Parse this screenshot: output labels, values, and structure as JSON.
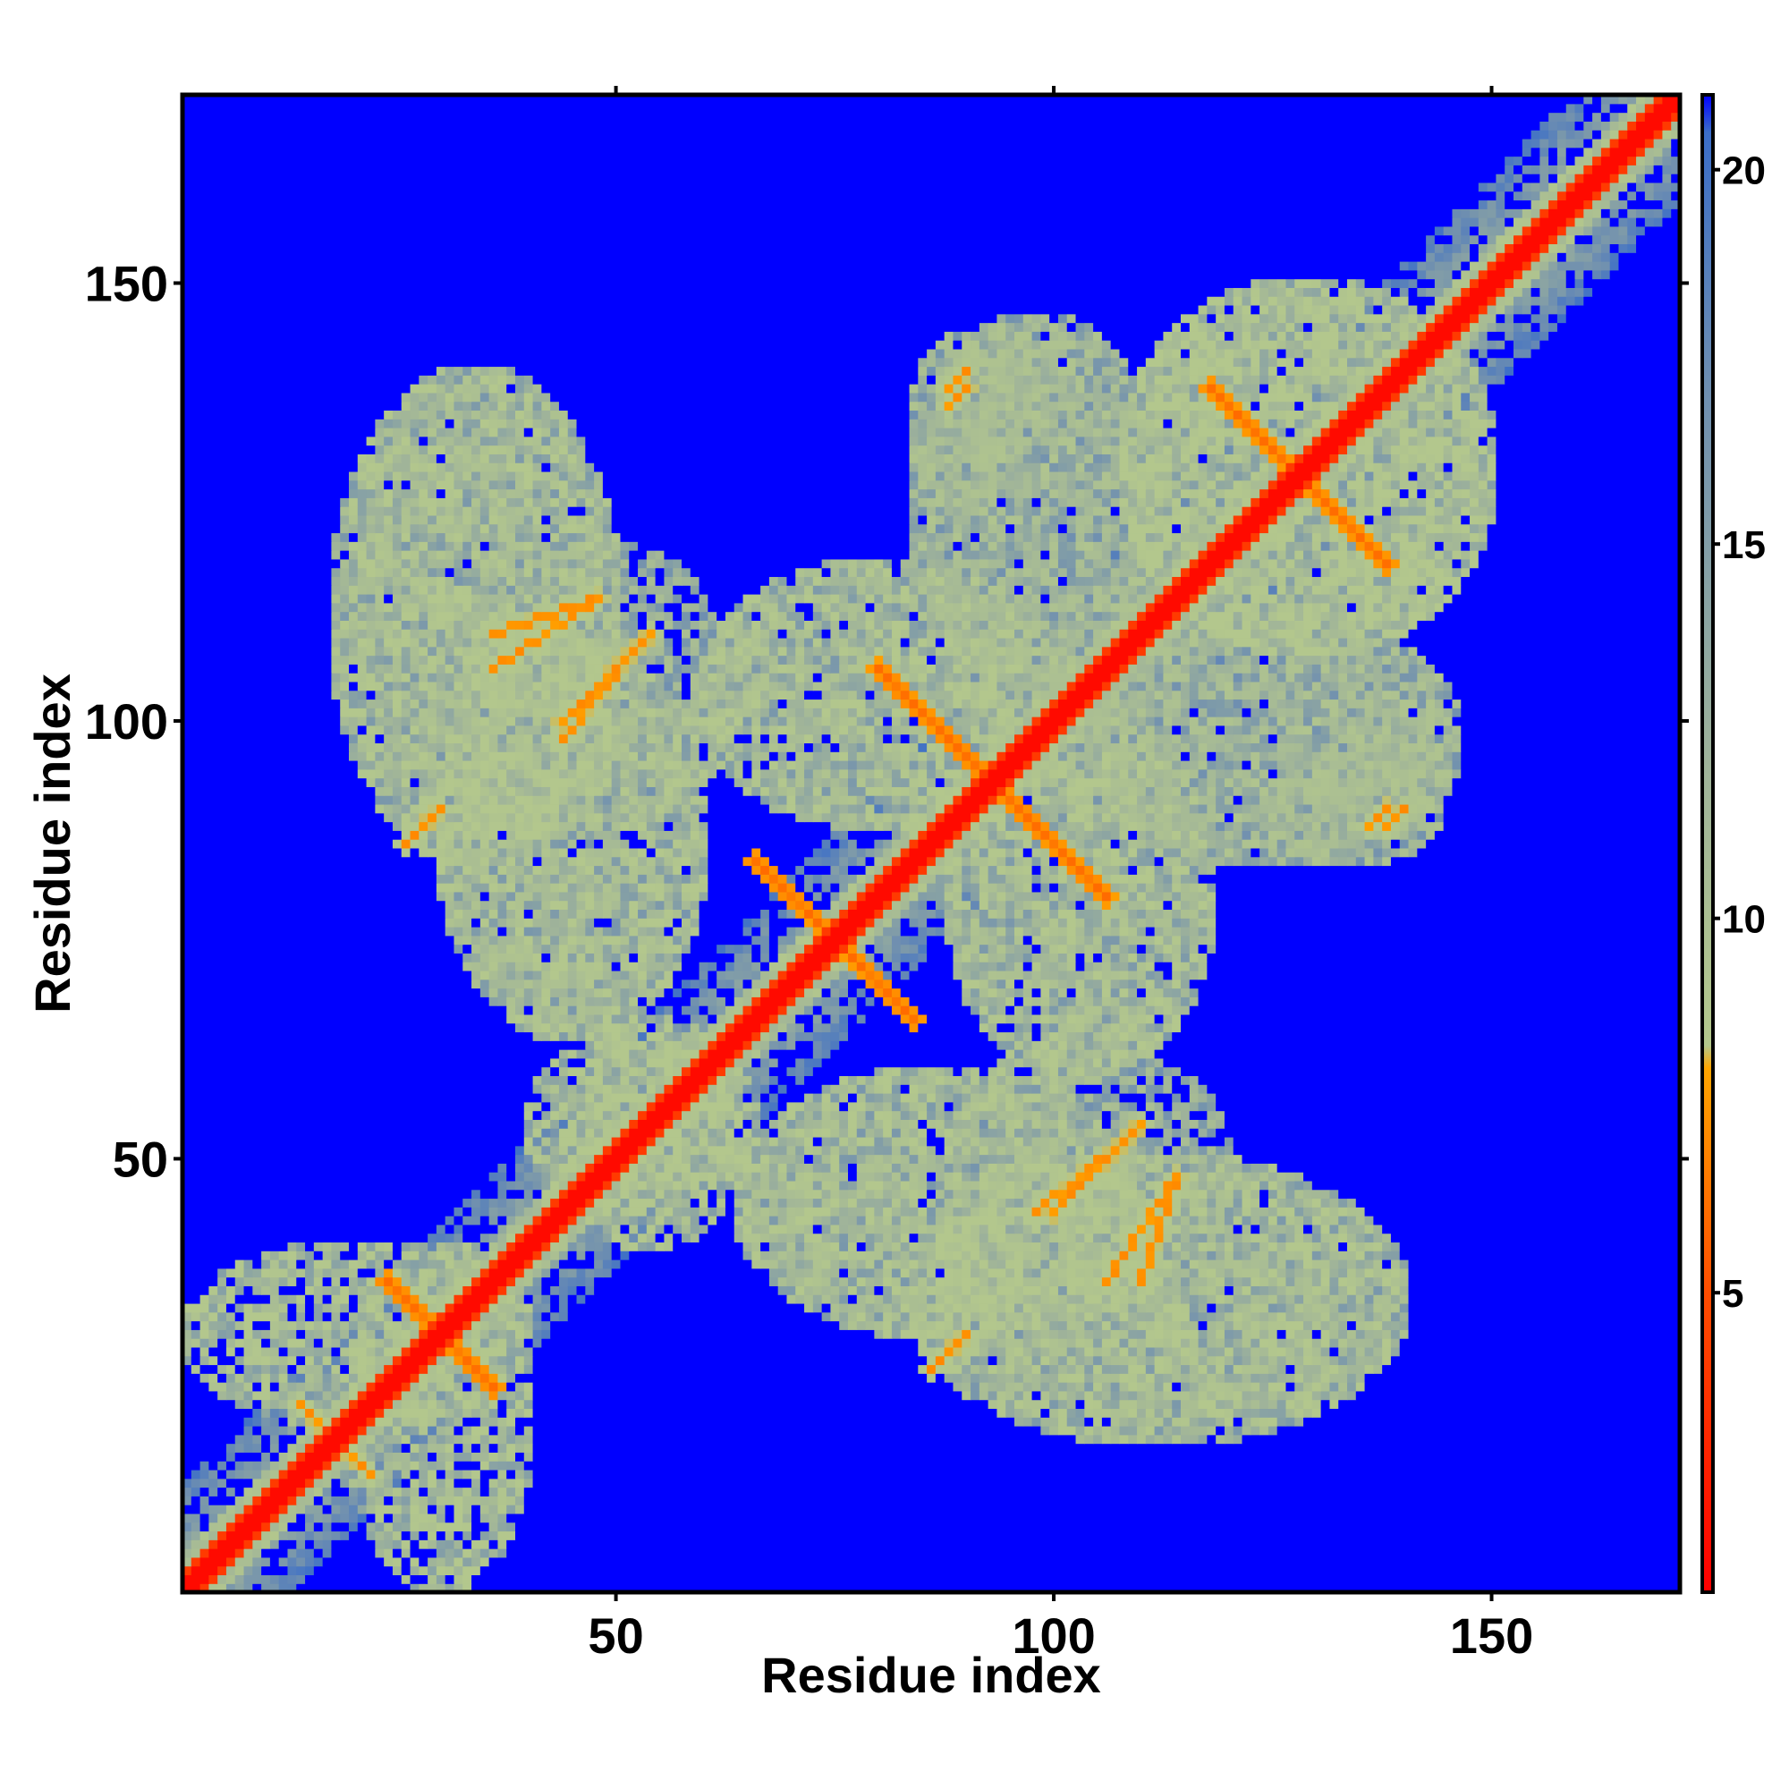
{
  "chart_data": {
    "type": "heatmap",
    "title": "",
    "xlabel": "Residue index",
    "ylabel": "Residue index",
    "xlim": [
      1,
      171
    ],
    "ylim": [
      1,
      171
    ],
    "x_ticks": [
      50,
      100,
      150
    ],
    "y_ticks": [
      50,
      100,
      150
    ],
    "colorbar": {
      "label": "",
      "range": [
        1,
        21
      ],
      "ticks": [
        5,
        10,
        15,
        20
      ],
      "stops": [
        {
          "value": 1,
          "color": "#ff0000"
        },
        {
          "value": 5,
          "color": "#ff4d00"
        },
        {
          "value": 8,
          "color": "#ffa500"
        },
        {
          "value": 8.3,
          "color": "#b4c88c"
        },
        {
          "value": 12,
          "color": "#9fb39a"
        },
        {
          "value": 17,
          "color": "#6f8fb0"
        },
        {
          "value": 20.5,
          "color": "#3b6ec8"
        },
        {
          "value": 21,
          "color": "#0000ff"
        }
      ]
    },
    "symmetric": true,
    "background_value": 21,
    "diagonal": {
      "value_on": 1.5,
      "value_near": 4,
      "band_value": 10
    },
    "contact_features": [
      {
        "kind": "antiparallel",
        "i": [
          24,
          36
        ],
        "j": [
          36,
          24
        ],
        "value": 6
      },
      {
        "kind": "antiparallel",
        "i": [
          66,
          84
        ],
        "j": [
          84,
          66
        ],
        "value": 6
      },
      {
        "kind": "antiparallel",
        "i": [
          80,
          106
        ],
        "j": [
          106,
          80
        ],
        "value": 6
      },
      {
        "kind": "antiparallel",
        "i": [
          118,
          138
        ],
        "j": [
          138,
          118
        ],
        "value": 6
      },
      {
        "kind": "antiparallel",
        "i": [
          14,
          22
        ],
        "j": [
          22,
          14
        ],
        "value": 7
      },
      {
        "kind": "segment",
        "i": [
          36,
          48
        ],
        "j": [
          110,
          114
        ],
        "value": 7
      },
      {
        "kind": "segment",
        "i": [
          44,
          52
        ],
        "j": [
          98,
          108
        ],
        "value": 7
      },
      {
        "kind": "segment",
        "i": [
          26,
          30
        ],
        "j": [
          86,
          90
        ],
        "value": 7
      },
      {
        "kind": "segment",
        "i": [
          86,
          90
        ],
        "j": [
          26,
          30
        ],
        "value": 7
      },
      {
        "kind": "segment",
        "i": [
          100,
          110
        ],
        "j": [
          44,
          54
        ],
        "value": 7
      },
      {
        "kind": "segment",
        "i": [
          106,
          114
        ],
        "j": [
          36,
          48
        ],
        "value": 7
      },
      {
        "kind": "segment",
        "i": [
          88,
          90
        ],
        "j": [
          136,
          138
        ],
        "value": 7
      },
      {
        "kind": "segment",
        "i": [
          138,
          140
        ],
        "j": [
          88,
          90
        ],
        "value": 7
      }
    ],
    "contact_regions": [
      {
        "i": [
          20,
          40
        ],
        "j": [
          1,
          40
        ],
        "value": 11
      },
      {
        "i": [
          44,
          64
        ],
        "j": [
          40,
          66
        ],
        "value": 11
      },
      {
        "i": [
          18,
          50
        ],
        "j": [
          84,
          140
        ],
        "value": 12
      },
      {
        "i": [
          84,
          140
        ],
        "j": [
          18,
          50
        ],
        "value": 12
      },
      {
        "i": [
          30,
          60
        ],
        "j": [
          64,
          110
        ],
        "value": 12
      },
      {
        "i": [
          64,
          110
        ],
        "j": [
          30,
          60
        ],
        "value": 12
      },
      {
        "i": [
          60,
          100
        ],
        "j": [
          88,
          118
        ],
        "value": 12
      },
      {
        "i": [
          88,
          118
        ],
        "j": [
          60,
          100
        ],
        "value": 12
      },
      {
        "i": [
          84,
          112
        ],
        "j": [
          104,
          146
        ],
        "value": 13
      },
      {
        "i": [
          104,
          146
        ],
        "j": [
          84,
          112
        ],
        "value": 13
      },
      {
        "i": [
          30,
          64
        ],
        "j": [
          88,
          120
        ],
        "value": 13
      },
      {
        "i": [
          108,
          150
        ],
        "j": [
          108,
          150
        ],
        "value": 11
      },
      {
        "i": [
          84,
          96
        ],
        "j": [
          124,
          144
        ],
        "value": 13
      },
      {
        "i": [
          124,
          144
        ],
        "j": [
          84,
          96
        ],
        "value": 13
      },
      {
        "i": [
          100,
          116
        ],
        "j": [
          88,
          100
        ],
        "value": 13
      },
      {
        "i": [
          132,
          142
        ],
        "j": [
          88,
          100
        ],
        "value": 13
      },
      {
        "i": [
          88,
          100
        ],
        "j": [
          132,
          142
        ],
        "value": 13
      }
    ]
  }
}
